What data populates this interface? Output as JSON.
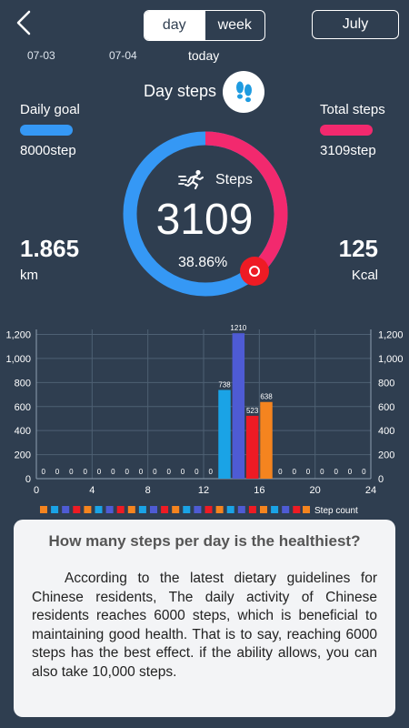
{
  "header": {
    "tabs": [
      {
        "label": "day",
        "active": true
      },
      {
        "label": "week",
        "active": false
      }
    ],
    "month_label": "July",
    "back_icon": "chevron-left-icon"
  },
  "dates": [
    {
      "label": "07-03"
    },
    {
      "label": "07-04"
    },
    {
      "label": "today",
      "selected": true
    }
  ],
  "summary": {
    "title": "Day steps",
    "feet_icon": "footprints-icon",
    "daily_goal_label": "Daily goal",
    "daily_goal_value": "8000step",
    "total_steps_label": "Total steps",
    "total_steps_value": "3109step",
    "distance_value": "1.865",
    "distance_unit": "km",
    "calories_value": "125",
    "calories_unit": "Kcal",
    "steps_label": "Steps",
    "steps_value": "3109",
    "percent_text": "38.86%",
    "progress_fraction": 0.3886,
    "colors": {
      "goal": "#3598f5",
      "total": "#f2296e",
      "marker": "#ee1b24"
    }
  },
  "chart_data": {
    "type": "bar",
    "x": [
      0,
      1,
      2,
      3,
      4,
      5,
      6,
      7,
      8,
      9,
      10,
      11,
      12,
      13,
      14,
      15,
      16,
      17,
      18,
      19,
      20,
      21,
      22,
      23
    ],
    "values": [
      0,
      0,
      0,
      0,
      0,
      0,
      0,
      0,
      0,
      0,
      0,
      0,
      0,
      738,
      1210,
      523,
      638,
      0,
      0,
      0,
      0,
      0,
      0,
      0
    ],
    "data_labels": [
      "0",
      "0",
      "0",
      "0",
      "0",
      "0",
      "0",
      "0",
      "0",
      "0",
      "0",
      "0",
      "0",
      "738",
      "1210",
      "523",
      "638",
      "0",
      "0",
      "0",
      "0",
      "0",
      "0",
      "0"
    ],
    "bar_colors": [
      "#1aa3e6",
      "#4e5bd4",
      "#ee1b24",
      "#f5841f"
    ],
    "x_ticks": [
      "0",
      "4",
      "8",
      "12",
      "16",
      "20",
      "24"
    ],
    "xlim": [
      0,
      24
    ],
    "y_ticks": [
      "0",
      "200",
      "400",
      "600",
      "800",
      "1,000",
      "1,200"
    ],
    "ylim": [
      0,
      1200
    ],
    "legend_label": "Step count",
    "legend_colors": [
      "#f5841f",
      "#1aa3e6",
      "#4e5bd4",
      "#ee1b24",
      "#f5841f",
      "#1aa3e6",
      "#4e5bd4",
      "#ee1b24",
      "#f5841f",
      "#1aa3e6",
      "#4e5bd4",
      "#ee1b24",
      "#f5841f",
      "#1aa3e6",
      "#4e5bd4",
      "#ee1b24",
      "#f5841f",
      "#1aa3e6",
      "#4e5bd4",
      "#ee1b24",
      "#f5841f",
      "#1aa3e6",
      "#4e5bd4",
      "#ee1b24"
    ],
    "grid": true
  },
  "tip": {
    "title": "How many steps per day is the healthiest?",
    "body": "According to the latest dietary guidelines for Chinese residents, The daily activity of Chinese residents reaches 6000 steps, which is beneficial to maintaining good health. That is to say, reaching 6000 steps has the best effect. if the ability allows, you can also take 10,000 steps."
  }
}
